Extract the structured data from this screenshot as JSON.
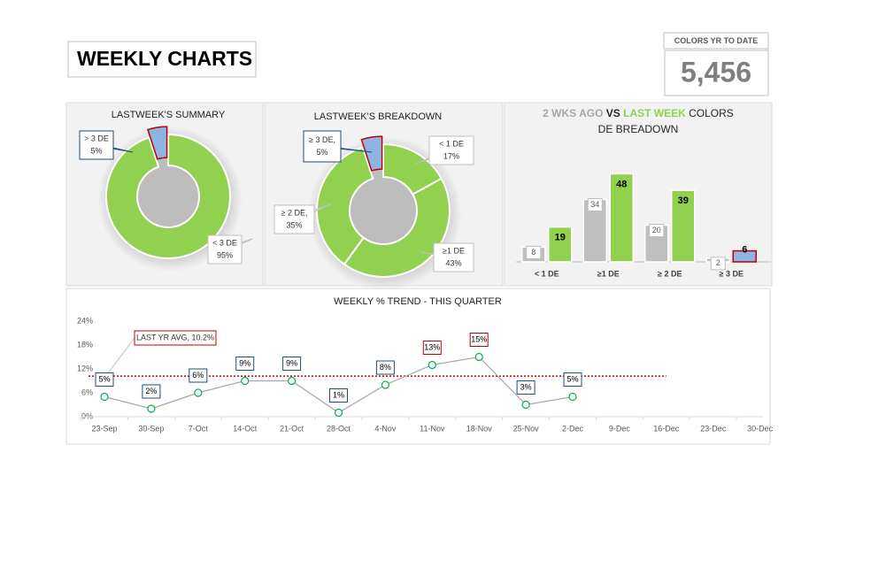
{
  "header": {
    "title": "WEEKLY CHARTS"
  },
  "kpi": {
    "label": "COLORS YR TO DATE",
    "value": "5,456"
  },
  "chart_data": [
    {
      "type": "donut",
      "title": "LASTWEEK'S SUMMARY",
      "categories": [
        "< 3 DE",
        "> 3 DE"
      ],
      "values": [
        95,
        5
      ],
      "value_labels": [
        "95%",
        "5%"
      ],
      "colors": [
        "#92d050",
        "#8eb4e3"
      ],
      "highlight": 1
    },
    {
      "type": "donut",
      "title": "LASTWEEK'S BREAKDOWN",
      "categories": [
        "< 1 DE",
        "≥1 DE",
        "≥ 2 DE,",
        "≥ 3 DE,"
      ],
      "values": [
        17,
        43,
        35,
        5
      ],
      "value_labels": [
        "17%",
        "43%",
        "35%",
        "5%"
      ],
      "colors": [
        "#92d050",
        "#92d050",
        "#92d050",
        "#8eb4e3"
      ],
      "highlight": 3
    },
    {
      "type": "bar",
      "title_join": "VS",
      "title_end": "COLORS DE BREADOWN",
      "categories": [
        "< 1 DE",
        "≥1 DE",
        "≥ 2 DE",
        "≥ 3 DE"
      ],
      "series": [
        {
          "name": "2 WKS AGO",
          "color": "#bfbfbf",
          "values": [
            8,
            34,
            20,
            2
          ]
        },
        {
          "name": "LAST WEEK",
          "color": "#92d050",
          "values": [
            19,
            48,
            39,
            6
          ]
        }
      ],
      "ylim": [
        0,
        55
      ],
      "highlight": {
        "series": 1,
        "index": 3,
        "color": "#8eb4e3"
      }
    },
    {
      "type": "line",
      "title": "WEEKLY % TREND - THIS QUARTER",
      "categories": [
        "23-Sep",
        "30-Sep",
        "7-Oct",
        "14-Oct",
        "21-Oct",
        "28-Oct",
        "4-Nov",
        "11-Nov",
        "18-Nov",
        "25-Nov",
        "2-Dec",
        "9-Dec",
        "16-Dec",
        "23-Dec",
        "30-Dec"
      ],
      "values": [
        5,
        2,
        6,
        9,
        9,
        1,
        8,
        13,
        15,
        3,
        5,
        null,
        null,
        null,
        null
      ],
      "value_labels": [
        "5%",
        "2%",
        "6%",
        "9%",
        "9%",
        "1%",
        "8%",
        "13%",
        "15%",
        "3%",
        "5%",
        null,
        null,
        null,
        null
      ],
      "color": "#a6a6a6",
      "marker_color": "#00b050",
      "ylim": [
        0,
        24
      ],
      "yticks": [
        {
          "value": 0,
          "label": "0%"
        },
        {
          "value": 6,
          "label": "6%"
        },
        {
          "value": 12,
          "label": "12%"
        },
        {
          "value": 18,
          "label": "18%"
        },
        {
          "value": 24,
          "label": "24%"
        }
      ],
      "reference": {
        "value": 10.2,
        "label": "LAST YR AVG, 10.2%",
        "color": "#c00000"
      }
    }
  ]
}
